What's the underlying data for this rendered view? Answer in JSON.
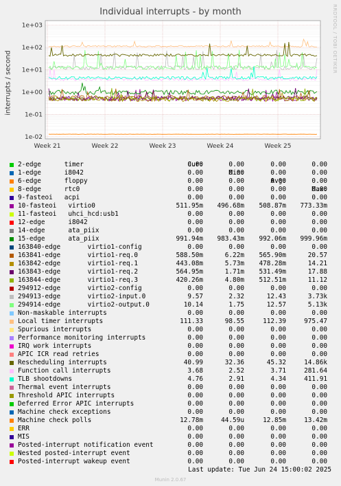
{
  "chart_data": {
    "type": "line",
    "title": "Individual interrupts - by month",
    "ylabel": "interrupts / second",
    "y_scale": "log",
    "ylim": [
      0.008,
      1500
    ],
    "y_ticks": [
      "1e+03",
      "1e+02",
      "1e+01",
      "1e+00",
      "1e-01",
      "1e-02"
    ],
    "x_ticks": [
      "Week 21",
      "Week 22",
      "Week 23",
      "Week 24",
      "Week 25"
    ],
    "grid": true,
    "columns": [
      "Cur:",
      "Min:",
      "Avg:",
      "Max:"
    ],
    "series": [
      {
        "name": "2-edge      timer",
        "color": "#00cc00",
        "cur": "0.00",
        "min": "0.00",
        "avg": "0.00",
        "max": "0.00"
      },
      {
        "name": "1-edge      i8042",
        "color": "#0066b3",
        "cur": "0.00",
        "min": "0.00",
        "avg": "0.00",
        "max": "0.00"
      },
      {
        "name": "6-edge      floppy",
        "color": "#ff8000",
        "cur": "0.00",
        "min": "0.00",
        "avg": "0.00",
        "max": "0.00"
      },
      {
        "name": "8-edge      rtc0",
        "color": "#ffcc00",
        "cur": "0.00",
        "min": "0.00",
        "avg": "0.00",
        "max": "0.00"
      },
      {
        "name": "9-fasteoi   acpi",
        "color": "#330099",
        "cur": "0.00",
        "min": "0.00",
        "avg": "0.00",
        "max": "0.00"
      },
      {
        "name": "10-fasteoi   virtio0",
        "color": "#990099",
        "cur": "511.95m",
        "min": "496.68m",
        "avg": "508.87m",
        "max": "773.33m"
      },
      {
        "name": "11-fasteoi   uhci_hcd:usb1",
        "color": "#ccff00",
        "cur": "0.00",
        "min": "0.00",
        "avg": "0.00",
        "max": "0.00"
      },
      {
        "name": "12-edge      i8042",
        "color": "#ff0000",
        "cur": "0.00",
        "min": "0.00",
        "avg": "0.00",
        "max": "0.00"
      },
      {
        "name": "14-edge      ata_piix",
        "color": "#808080",
        "cur": "0.00",
        "min": "0.00",
        "avg": "0.00",
        "max": "0.00"
      },
      {
        "name": "15-edge      ata_piix",
        "color": "#008f00",
        "cur": "991.94m",
        "min": "983.43m",
        "avg": "992.06m",
        "max": "999.96m"
      },
      {
        "name": "163840-edge       virtio1-config",
        "color": "#00487d",
        "cur": "0.00",
        "min": "0.00",
        "avg": "0.00",
        "max": "0.00"
      },
      {
        "name": "163841-edge       virtio1-req.0",
        "color": "#b35a00",
        "cur": "588.50m",
        "min": "6.22m",
        "avg": "565.90m",
        "max": "20.57"
      },
      {
        "name": "163842-edge       virtio1-req.1",
        "color": "#b38f00",
        "cur": "443.08m",
        "min": "5.73m",
        "avg": "478.28m",
        "max": "14.21"
      },
      {
        "name": "163843-edge       virtio1-req.2",
        "color": "#6b006b",
        "cur": "564.95m",
        "min": "1.71m",
        "avg": "531.49m",
        "max": "17.88"
      },
      {
        "name": "163844-edge       virtio1-req.3",
        "color": "#8fb300",
        "cur": "420.26m",
        "min": "4.80m",
        "avg": "512.51m",
        "max": "11.12"
      },
      {
        "name": "294912-edge       virtio2-config",
        "color": "#b30000",
        "cur": "0.00",
        "min": "0.00",
        "avg": "0.00",
        "max": "0.00"
      },
      {
        "name": "294913-edge       virtio2-input.0",
        "color": "#bebebe",
        "cur": "9.57",
        "min": "2.32",
        "avg": "12.43",
        "max": "3.73k"
      },
      {
        "name": "294914-edge       virtio2-output.0",
        "color": "#80ff80",
        "cur": "10.14",
        "min": "1.75",
        "avg": "12.57",
        "max": "5.13k"
      },
      {
        "name": "Non-maskable interrupts",
        "color": "#80c9ff",
        "cur": "0.00",
        "min": "0.00",
        "avg": "0.00",
        "max": "0.00"
      },
      {
        "name": "Local timer interrupts",
        "color": "#ffc080",
        "cur": "111.33",
        "min": "98.55",
        "avg": "112.39",
        "max": "975.47"
      },
      {
        "name": "Spurious interrupts",
        "color": "#ffe680",
        "cur": "0.00",
        "min": "0.00",
        "avg": "0.00",
        "max": "0.00"
      },
      {
        "name": "Performance monitoring interrupts",
        "color": "#aa80ff",
        "cur": "0.00",
        "min": "0.00",
        "avg": "0.00",
        "max": "0.00"
      },
      {
        "name": "IRQ work interrupts",
        "color": "#ee00cc",
        "cur": "0.00",
        "min": "0.00",
        "avg": "0.00",
        "max": "0.00"
      },
      {
        "name": "APIC ICR read retries",
        "color": "#ff8080",
        "cur": "0.00",
        "min": "0.00",
        "avg": "0.00",
        "max": "0.00"
      },
      {
        "name": "Rescheduling interrupts",
        "color": "#666600",
        "cur": "40.99",
        "min": "32.36",
        "avg": "45.32",
        "max": "14.86k"
      },
      {
        "name": "Function call interrupts",
        "color": "#ffbfff",
        "cur": "3.68",
        "min": "2.52",
        "avg": "3.71",
        "max": "281.64"
      },
      {
        "name": "TLB shootdowns",
        "color": "#00ffcc",
        "cur": "4.76",
        "min": "2.91",
        "avg": "4.34",
        "max": "411.91"
      },
      {
        "name": "Thermal event interrupts",
        "color": "#cc6699",
        "cur": "0.00",
        "min": "0.00",
        "avg": "0.00",
        "max": "0.00"
      },
      {
        "name": "Threshold APIC interrupts",
        "color": "#999900",
        "cur": "0.00",
        "min": "0.00",
        "avg": "0.00",
        "max": "0.00"
      },
      {
        "name": "Deferred Error APIC interrupts",
        "color": "#00cc00",
        "cur": "0.00",
        "min": "0.00",
        "avg": "0.00",
        "max": "0.00"
      },
      {
        "name": "Machine check exceptions",
        "color": "#0066b3",
        "cur": "0.00",
        "min": "0.00",
        "avg": "0.00",
        "max": "0.00"
      },
      {
        "name": "Machine check polls",
        "color": "#ff8000",
        "cur": "12.78m",
        "min": "44.59u",
        "avg": "12.85m",
        "max": "13.42m"
      },
      {
        "name": "ERR",
        "color": "#ffcc00",
        "cur": "0.00",
        "min": "0.00",
        "avg": "0.00",
        "max": "0.00"
      },
      {
        "name": "MIS",
        "color": "#330099",
        "cur": "0.00",
        "min": "0.00",
        "avg": "0.00",
        "max": "0.00"
      },
      {
        "name": "Posted-interrupt notification event",
        "color": "#990099",
        "cur": "0.00",
        "min": "0.00",
        "avg": "0.00",
        "max": "0.00"
      },
      {
        "name": "Nested posted-interrupt event",
        "color": "#ccff00",
        "cur": "0.00",
        "min": "0.00",
        "avg": "0.00",
        "max": "0.00"
      },
      {
        "name": "Posted-interrupt wakeup event",
        "color": "#ff0000",
        "cur": "0.00",
        "min": "0.00",
        "avg": "0.00",
        "max": "0.00"
      }
    ]
  },
  "footer": {
    "last_update": "Last update: Tue Jun 24 15:00:02 2025",
    "version": "Munin 2.0.67",
    "watermark": "RRDTOOL / TOBI OETIKER"
  }
}
